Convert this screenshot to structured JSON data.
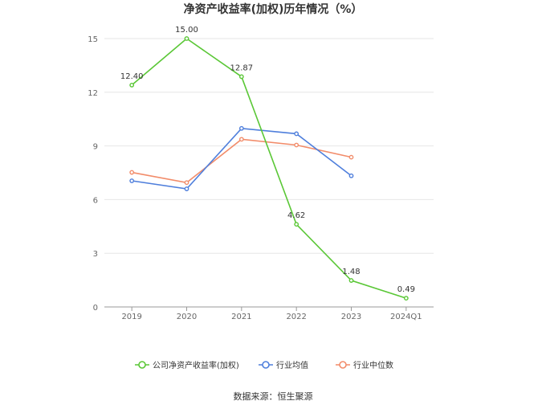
{
  "chart_data": {
    "type": "line",
    "title": "净资产收益率(加权)历年情况（%）",
    "categories": [
      "2019",
      "2020",
      "2021",
      "2022",
      "2023",
      "2024Q1"
    ],
    "ylim": [
      0,
      15
    ],
    "yticks": [
      "0",
      "3",
      "6",
      "9",
      "12",
      "15"
    ],
    "grid": true,
    "legend_position": "bottom",
    "series": [
      {
        "name": "公司净资产收益率(加权)",
        "color": "#5ac736",
        "values": [
          12.4,
          15.0,
          12.87,
          4.62,
          1.48,
          0.49
        ],
        "labels": [
          "12.40",
          "15.00",
          "12.87",
          "4.62",
          "1.48",
          "0.49"
        ]
      },
      {
        "name": "行业均值",
        "color": "#4f7fdc",
        "values": [
          7.05,
          6.6,
          9.98,
          9.68,
          7.33,
          null
        ]
      },
      {
        "name": "行业中位数",
        "color": "#f28c6a",
        "values": [
          7.52,
          6.95,
          9.37,
          9.05,
          8.37,
          null
        ]
      }
    ]
  },
  "source": "数据来源：恒生聚源"
}
